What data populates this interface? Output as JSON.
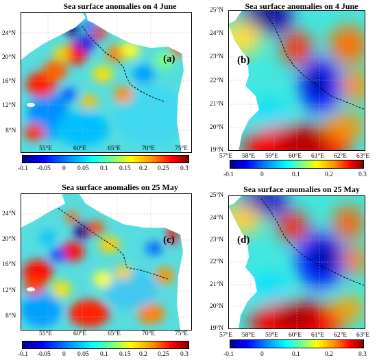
{
  "panels": [
    {
      "id": "a",
      "title": "Sea surface anomalies on 4 June",
      "label": "(a)",
      "lat_ticks": [
        "24°N",
        "20°N",
        "16°N",
        "12°N",
        "8°N"
      ],
      "lon_ticks": [
        "55°E",
        "60°E",
        "65°E",
        "70°E",
        "75°E"
      ],
      "colorbar_ticks": [
        "-0.1",
        "-0.05",
        "0",
        "0.05",
        "0.1",
        "0.15",
        "0.2",
        "0.25",
        "0.3"
      ]
    },
    {
      "id": "b",
      "title": "Sea surface anomalies on 4 June",
      "label": "(b)",
      "lat_ticks": [
        "25°N",
        "24°N",
        "23°N",
        "22°N",
        "21°N",
        "20°N",
        "19°N"
      ],
      "lon_ticks": [
        "57°E",
        "58°E",
        "59°E",
        "60°E",
        "61°E",
        "62°E",
        "63°E"
      ],
      "colorbar_ticks": [
        "-0.1",
        "0",
        "0.1",
        "0.2",
        "0.3"
      ]
    },
    {
      "id": "c",
      "title": "Sea surface anomalies on 25 May",
      "label": "(c)",
      "lat_ticks": [
        "24°N",
        "20°N",
        "16°N",
        "12°N",
        "8°N"
      ],
      "lon_ticks": [
        "55°E",
        "60°E",
        "65°E",
        "70°E",
        "75°E"
      ],
      "colorbar_ticks": [
        "-0.1",
        "-0.05",
        "0",
        "0.05",
        "0.1",
        "0.15",
        "0.2",
        "0.25",
        "0.3"
      ]
    },
    {
      "id": "d",
      "title": "Sea surface anomalies on 25 May",
      "label": "(d)",
      "lat_ticks": [
        "25°N",
        "24°N",
        "23°N",
        "22°N",
        "21°N",
        "20°N",
        "19°N"
      ],
      "lon_ticks": [
        "57°E",
        "58°E",
        "59°E",
        "60°E",
        "61°E",
        "62°E",
        "63°E"
      ],
      "colorbar_ticks": [
        "-0.1",
        "0",
        "0.1",
        "0.2",
        "0.3"
      ]
    }
  ],
  "colormap": [
    "#00008f",
    "#0000ff",
    "#00a0ff",
    "#00ffff",
    "#80ff80",
    "#ffff00",
    "#ff9000",
    "#ff0000",
    "#800000"
  ],
  "land_color": "#ffffff"
}
